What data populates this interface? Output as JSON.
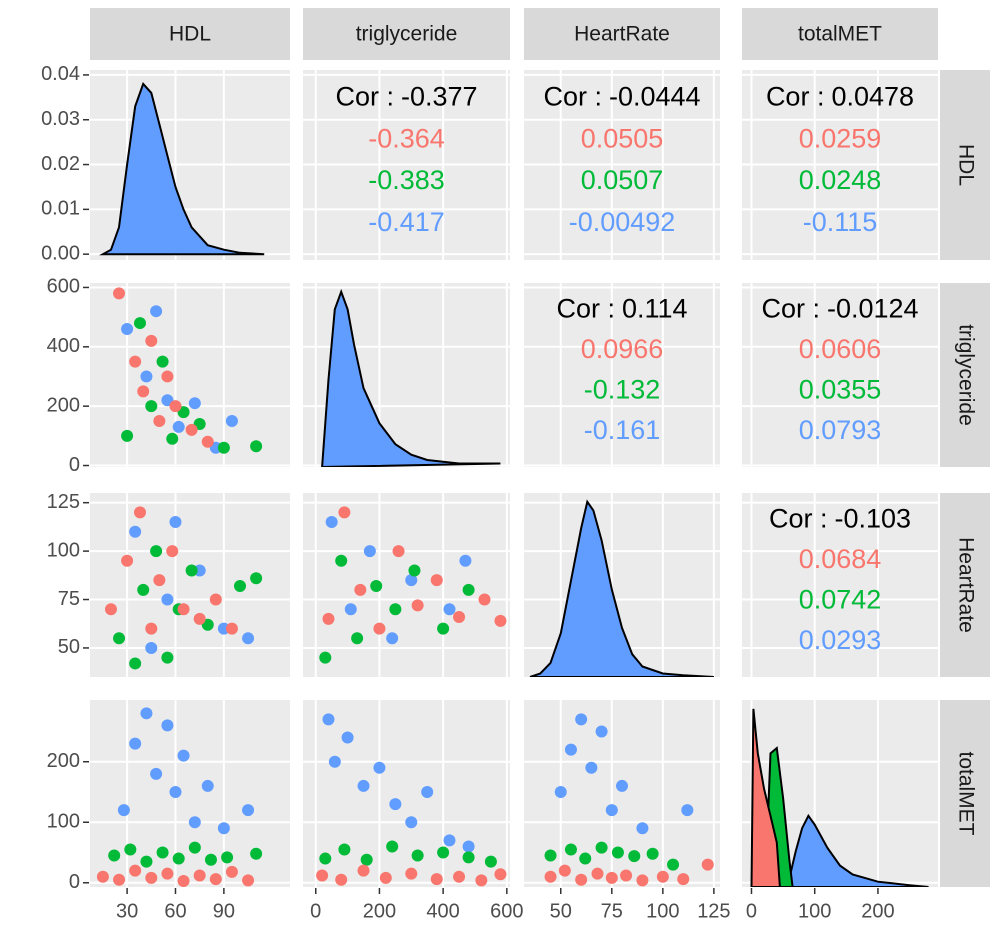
{
  "chart_data": {
    "type": "pairs",
    "variables": [
      "HDL",
      "triglyceride",
      "HeartRate",
      "totalMET"
    ],
    "groups": [
      {
        "color": "#F8766D"
      },
      {
        "color": "#00BA38"
      },
      {
        "color": "#619CFF"
      }
    ],
    "grid": true,
    "x_axes": [
      {
        "lim": [
          7,
          131
        ],
        "ticks": [
          30,
          60,
          90
        ]
      },
      {
        "lim": [
          -40,
          610
        ],
        "ticks": [
          0,
          200,
          400,
          600
        ]
      },
      {
        "lim": [
          32,
          128
        ],
        "ticks": [
          50,
          75,
          100,
          125
        ]
      },
      {
        "lim": [
          -15,
          295
        ],
        "ticks": [
          0,
          100,
          200
        ]
      }
    ],
    "y_axes": [
      {
        "lim": [
          -0.0013,
          0.0411
        ],
        "ticks": [
          {
            "value": 0,
            "label": "0.00"
          },
          0.01,
          0.02,
          0.03,
          0.04
        ]
      },
      {
        "lim": [
          -5,
          615
        ],
        "ticks": [
          0,
          200,
          400,
          600
        ]
      },
      {
        "lim": [
          35,
          130
        ],
        "ticks": [
          50,
          75,
          100,
          125
        ]
      },
      {
        "lim": [
          -7,
          302
        ],
        "ticks": [
          0,
          100,
          200
        ]
      }
    ],
    "matrix": [
      [
        {
          "type": "density",
          "series": [
            {
              "group": 2,
              "x": [
                15,
                20,
                25,
                30,
                35,
                40,
                45,
                50,
                55,
                60,
                65,
                70,
                75,
                80,
                90,
                100,
                115
              ],
              "y": [
                0,
                0.001,
                0.006,
                0.02,
                0.033,
                0.038,
                0.036,
                0.029,
                0.022,
                0.015,
                0.01,
                0.006,
                0.004,
                0.002,
                0.001,
                0.0003,
                0
              ]
            }
          ]
        },
        {
          "type": "cor",
          "label": "Cor :",
          "value": -0.377,
          "groups": [
            -0.364,
            -0.383,
            -0.417
          ]
        },
        {
          "type": "cor",
          "label": "Cor :",
          "value": -0.0444,
          "groups": [
            0.0505,
            0.0507,
            -0.00492
          ]
        },
        {
          "type": "cor",
          "label": "Cor :",
          "value": 0.0478,
          "groups": [
            0.0259,
            0.0248,
            -0.115
          ]
        }
      ],
      [
        {
          "type": "scatter",
          "series": [
            {
              "group": 2,
              "x": [
                30,
                42,
                48,
                55,
                62,
                72,
                85,
                95
              ],
              "y": [
                460,
                300,
                520,
                220,
                130,
                210,
                60,
                150
              ]
            },
            {
              "group": 1,
              "x": [
                30,
                38,
                45,
                52,
                58,
                65,
                75,
                90,
                110
              ],
              "y": [
                100,
                480,
                200,
                350,
                90,
                180,
                140,
                60,
                65
              ]
            },
            {
              "group": 0,
              "x": [
                25,
                35,
                40,
                45,
                50,
                55,
                60,
                70,
                80
              ],
              "y": [
                580,
                350,
                250,
                420,
                150,
                300,
                200,
                120,
                80
              ]
            }
          ]
        },
        {
          "type": "density",
          "ylim": [
            0,
            1.05
          ],
          "series": [
            {
              "group": 2,
              "x": [
                20,
                40,
                60,
                80,
                100,
                120,
                150,
                200,
                250,
                300,
                350,
                400,
                450,
                500,
                580
              ],
              "y": [
                0,
                0.5,
                0.9,
                1.0,
                0.9,
                0.7,
                0.45,
                0.25,
                0.13,
                0.07,
                0.04,
                0.03,
                0.02,
                0.02,
                0.02
              ]
            }
          ]
        },
        {
          "type": "cor",
          "label": "Cor :",
          "value": 0.114,
          "groups": [
            0.0966,
            -0.132,
            -0.161
          ]
        },
        {
          "type": "cor",
          "label": "Cor :",
          "value": -0.0124,
          "groups": [
            0.0606,
            0.0355,
            0.0793
          ]
        }
      ],
      [
        {
          "type": "scatter",
          "series": [
            {
              "group": 2,
              "x": [
                35,
                45,
                55,
                60,
                75,
                90,
                105
              ],
              "y": [
                110,
                50,
                75,
                115,
                90,
                60,
                55
              ]
            },
            {
              "group": 1,
              "x": [
                25,
                35,
                40,
                48,
                55,
                62,
                70,
                80,
                100,
                110
              ],
              "y": [
                55,
                42,
                80,
                100,
                45,
                70,
                90,
                62,
                82,
                86
              ]
            },
            {
              "group": 0,
              "x": [
                20,
                30,
                38,
                45,
                50,
                58,
                65,
                75,
                85,
                95
              ],
              "y": [
                70,
                95,
                120,
                60,
                85,
                100,
                70,
                65,
                75,
                60
              ]
            }
          ]
        },
        {
          "type": "scatter",
          "series": [
            {
              "group": 2,
              "x": [
                50,
                110,
                170,
                240,
                300,
                420,
                470
              ],
              "y": [
                115,
                70,
                100,
                55,
                85,
                70,
                95
              ]
            },
            {
              "group": 1,
              "x": [
                30,
                80,
                130,
                190,
                250,
                310,
                400,
                480
              ],
              "y": [
                45,
                95,
                55,
                82,
                70,
                90,
                60,
                80
              ]
            },
            {
              "group": 0,
              "x": [
                40,
                90,
                140,
                200,
                260,
                320,
                380,
                450,
                530,
                580
              ],
              "y": [
                65,
                120,
                80,
                60,
                100,
                72,
                85,
                66,
                75,
                64
              ]
            }
          ]
        },
        {
          "type": "density",
          "ylim": [
            0,
            1.05
          ],
          "series": [
            {
              "group": 2,
              "x": [
                35,
                40,
                45,
                50,
                55,
                60,
                63,
                66,
                70,
                75,
                80,
                85,
                90,
                100,
                110,
                125
              ],
              "y": [
                0,
                0.02,
                0.08,
                0.25,
                0.55,
                0.85,
                1.0,
                0.95,
                0.78,
                0.5,
                0.28,
                0.13,
                0.06,
                0.02,
                0.01,
                0
              ]
            }
          ]
        },
        {
          "type": "cor",
          "label": "Cor :",
          "value": -0.103,
          "groups": [
            0.0684,
            0.0742,
            0.0293
          ]
        }
      ],
      [
        {
          "type": "scatter",
          "series": [
            {
              "group": 2,
              "x": [
                28,
                35,
                42,
                48,
                55,
                60,
                65,
                72,
                80,
                90,
                105
              ],
              "y": [
                120,
                230,
                280,
                180,
                260,
                150,
                210,
                100,
                160,
                90,
                120
              ]
            },
            {
              "group": 1,
              "x": [
                22,
                32,
                42,
                52,
                62,
                72,
                82,
                92,
                110
              ],
              "y": [
                45,
                55,
                35,
                50,
                40,
                58,
                38,
                42,
                48
              ]
            },
            {
              "group": 0,
              "x": [
                15,
                25,
                35,
                45,
                55,
                65,
                75,
                85,
                95,
                105
              ],
              "y": [
                10,
                5,
                20,
                8,
                15,
                3,
                12,
                6,
                18,
                4
              ]
            }
          ]
        },
        {
          "type": "scatter",
          "series": [
            {
              "group": 2,
              "x": [
                40,
                60,
                100,
                150,
                200,
                250,
                300,
                350,
                420,
                480
              ],
              "y": [
                270,
                200,
                240,
                160,
                190,
                130,
                100,
                150,
                70,
                60
              ]
            },
            {
              "group": 1,
              "x": [
                30,
                90,
                160,
                240,
                320,
                400,
                480,
                550
              ],
              "y": [
                40,
                55,
                38,
                60,
                45,
                50,
                42,
                35
              ]
            },
            {
              "group": 0,
              "x": [
                20,
                80,
                150,
                220,
                300,
                380,
                450,
                520,
                580
              ],
              "y": [
                12,
                5,
                20,
                8,
                15,
                6,
                10,
                4,
                14
              ]
            }
          ]
        },
        {
          "type": "scatter",
          "series": [
            {
              "group": 2,
              "x": [
                50,
                55,
                60,
                65,
                70,
                75,
                80,
                90,
                112
              ],
              "y": [
                150,
                220,
                270,
                190,
                250,
                120,
                160,
                90,
                120
              ]
            },
            {
              "group": 1,
              "x": [
                45,
                55,
                62,
                70,
                78,
                86,
                95,
                105
              ],
              "y": [
                45,
                55,
                40,
                58,
                50,
                44,
                48,
                30
              ]
            },
            {
              "group": 0,
              "x": [
                45,
                52,
                60,
                68,
                75,
                82,
                90,
                100,
                110,
                122
              ],
              "y": [
                10,
                20,
                5,
                15,
                8,
                12,
                4,
                10,
                6,
                30
              ]
            }
          ]
        },
        {
          "type": "density",
          "ylim": [
            0,
            1.05
          ],
          "series": [
            {
              "group": 2,
              "x": [
                50,
                60,
                70,
                80,
                90,
                100,
                120,
                140,
                160,
                200,
                250,
                280
              ],
              "y": [
                0,
                0.05,
                0.2,
                0.33,
                0.4,
                0.35,
                0.22,
                0.12,
                0.07,
                0.03,
                0.01,
                0
              ]
            },
            {
              "group": 1,
              "x": [
                20,
                25,
                30,
                40,
                50,
                60,
                65
              ],
              "y": [
                0,
                0.3,
                0.75,
                0.78,
                0.5,
                0.15,
                0
              ]
            },
            {
              "group": 0,
              "x": [
                0,
                3,
                10,
                20,
                30,
                40,
                45
              ],
              "y": [
                0,
                1.0,
                0.75,
                0.55,
                0.4,
                0.25,
                0
              ]
            }
          ]
        }
      ]
    ]
  }
}
